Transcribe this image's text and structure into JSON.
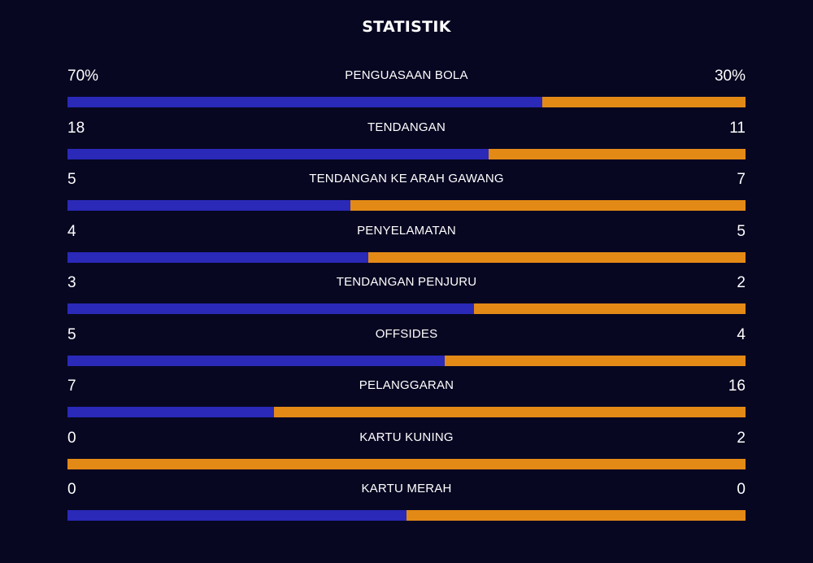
{
  "title": "STATISTIK",
  "colors": {
    "background": "#070722",
    "home": "#2a29b8",
    "away": "#e38a16"
  },
  "stats": [
    {
      "label": "PENGUASAAN BOLA",
      "left": "70%",
      "right": "30%",
      "home_share": 0.7
    },
    {
      "label": "TENDANGAN",
      "left": "18",
      "right": "11",
      "home_share": 0.621
    },
    {
      "label": "TENDANGAN KE ARAH GAWANG",
      "left": "5",
      "right": "7",
      "home_share": 0.417
    },
    {
      "label": "PENYELAMATAN",
      "left": "4",
      "right": "5",
      "home_share": 0.444
    },
    {
      "label": "TENDANGAN PENJURU",
      "left": "3",
      "right": "2",
      "home_share": 0.6
    },
    {
      "label": "OFFSIDES",
      "left": "5",
      "right": "4",
      "home_share": 0.556
    },
    {
      "label": "PELANGGARAN",
      "left": "7",
      "right": "16",
      "home_share": 0.304
    },
    {
      "label": "KARTU KUNING",
      "left": "0",
      "right": "2",
      "home_share": 0.0
    },
    {
      "label": "KARTU MERAH",
      "left": "0",
      "right": "0",
      "home_share": 0.5
    }
  ]
}
